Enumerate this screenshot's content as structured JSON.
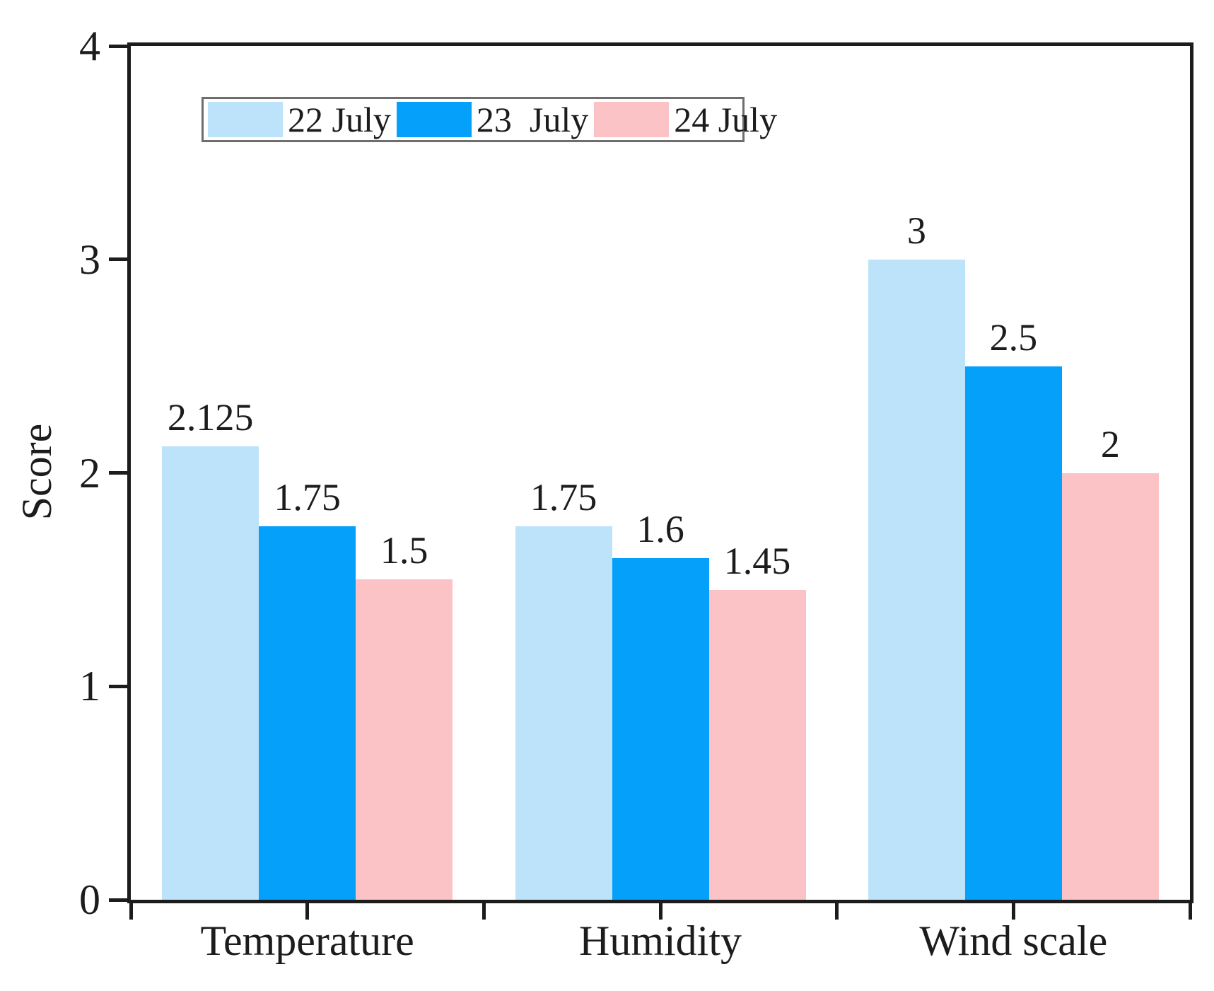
{
  "chart_data": {
    "type": "bar",
    "title": "",
    "xlabel": "",
    "ylabel": "Score",
    "ylim": [
      0,
      4
    ],
    "yticks": [
      0,
      1,
      2,
      3,
      4
    ],
    "grid": false,
    "legend_position": "top-left-inside-boxed",
    "categories": [
      "Temperature",
      "Humidity",
      "Wind scale"
    ],
    "series": [
      {
        "name": "22 July",
        "color": "#BDE3FA",
        "values": [
          2.125,
          1.75,
          3
        ],
        "labels": [
          "2.125",
          "1.75",
          "3"
        ]
      },
      {
        "name": "23  July",
        "color": "#04A0F9",
        "values": [
          1.75,
          1.6,
          2.5
        ],
        "labels": [
          "1.75",
          "1.6",
          "2.5"
        ]
      },
      {
        "name": "24 July",
        "color": "#FBC3C5",
        "values": [
          1.5,
          1.45,
          2
        ],
        "labels": [
          "1.5",
          "1.45",
          "2"
        ]
      }
    ],
    "axis_color": "#1c1c1c",
    "text_color": "#1c1c1c",
    "legend_border_color": "#6e6e6e"
  }
}
